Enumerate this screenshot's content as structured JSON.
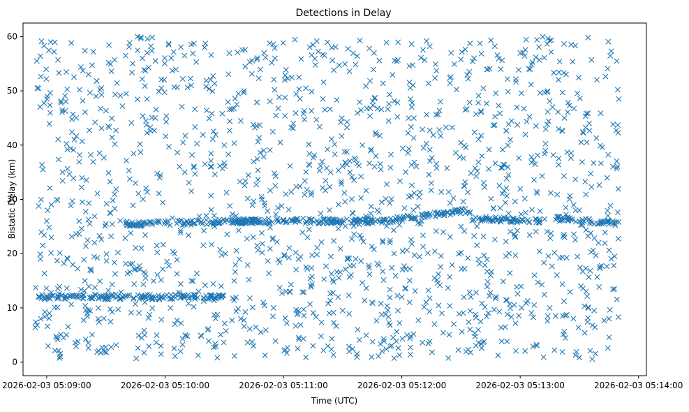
{
  "chart_data": {
    "type": "scatter",
    "title": "Detections in Delay",
    "xlabel": "Time (UTC)",
    "ylabel": "Bistatic Delay (km)",
    "xlim": [
      "2026-02-03 05:08:48",
      "2026-02-03 05:14:04"
    ],
    "ylim": [
      -2.5,
      62.5
    ],
    "x_ticks": [
      "2026-02-03 05:09:00",
      "2026-02-03 05:10:00",
      "2026-02-03 05:11:00",
      "2026-02-03 05:12:00",
      "2026-02-03 05:13:00",
      "2026-02-03 05:14:00"
    ],
    "y_ticks": [
      0,
      10,
      20,
      30,
      40,
      50,
      60
    ],
    "marker": "x",
    "color": "#1f77b4",
    "grid": false,
    "legend": "none",
    "series": [
      {
        "x_range": [
          "2026-02-03 05:08:54",
          "2026-02-03 05:13:50"
        ],
        "y_range": [
          0.5,
          60
        ],
        "points": [
          [
            "2026-02-03 05:08:55",
            55.5
          ],
          [
            "2026-02-03 05:08:56",
            12.0
          ],
          [
            "2026-02-03 05:08:57",
            8.0
          ],
          [
            "2026-02-03 05:08:58",
            21.5
          ],
          [
            "2026-02-03 05:09:00",
            26.0
          ],
          [
            "2026-02-03 05:09:02",
            59.0
          ],
          [
            "2026-02-03 05:09:05",
            30.0
          ],
          [
            "2026-02-03 05:09:08",
            35.0
          ],
          [
            "2026-02-03 05:09:10",
            5.0
          ],
          [
            "2026-02-03 05:09:14",
            41.0
          ],
          [
            "2026-02-03 05:09:18",
            29.5
          ],
          [
            "2026-02-03 05:09:22",
            17.0
          ],
          [
            "2026-02-03 05:09:25",
            49.0
          ],
          [
            "2026-02-03 05:09:30",
            25.5
          ],
          [
            "2026-02-03 05:09:35",
            12.5
          ],
          [
            "2026-02-03 05:09:40",
            56.5
          ],
          [
            "2026-02-03 05:09:45",
            33.0
          ],
          [
            "2026-02-03 05:09:48",
            21.0
          ],
          [
            "2026-02-03 05:09:50",
            12.0
          ],
          [
            "2026-02-03 05:09:55",
            45.0
          ],
          [
            "2026-02-03 05:10:00",
            26.0
          ],
          [
            "2026-02-03 05:10:05",
            7.0
          ],
          [
            "2026-02-03 05:10:10",
            35.0
          ],
          [
            "2026-02-03 05:10:15",
            12.0
          ],
          [
            "2026-02-03 05:10:20",
            58.0
          ],
          [
            "2026-02-03 05:10:25",
            25.0
          ],
          [
            "2026-02-03 05:10:30",
            40.0
          ],
          [
            "2026-02-03 05:10:35",
            15.0
          ],
          [
            "2026-02-03 05:10:40",
            50.0
          ],
          [
            "2026-02-03 05:10:45",
            26.0
          ],
          [
            "2026-02-03 05:10:50",
            39.0
          ],
          [
            "2026-02-03 05:10:55",
            10.0
          ],
          [
            "2026-02-03 05:11:00",
            26.0
          ],
          [
            "2026-02-03 05:11:05",
            44.0
          ],
          [
            "2026-02-03 05:11:10",
            26.5
          ],
          [
            "2026-02-03 05:11:15",
            3.0
          ],
          [
            "2026-02-03 05:11:20",
            48.5
          ],
          [
            "2026-02-03 05:11:25",
            26.0
          ],
          [
            "2026-02-03 05:11:30",
            9.5
          ],
          [
            "2026-02-03 05:11:35",
            27.5
          ],
          [
            "2026-02-03 05:11:40",
            40.0
          ],
          [
            "2026-02-03 05:11:45",
            26.0
          ],
          [
            "2026-02-03 05:11:50",
            2.0
          ],
          [
            "2026-02-03 05:11:55",
            26.0
          ],
          [
            "2026-02-03 05:12:00",
            12.0
          ],
          [
            "2026-02-03 05:12:05",
            47.0
          ],
          [
            "2026-02-03 05:12:10",
            26.0
          ],
          [
            "2026-02-03 05:12:15",
            33.0
          ],
          [
            "2026-02-03 05:12:20",
            27.5
          ],
          [
            "2026-02-03 05:12:25",
            57.0
          ],
          [
            "2026-02-03 05:12:30",
            25.0
          ],
          [
            "2026-02-03 05:12:35",
            12.0
          ],
          [
            "2026-02-03 05:12:40",
            26.0
          ],
          [
            "2026-02-03 05:12:45",
            16.0
          ],
          [
            "2026-02-03 05:12:50",
            26.0
          ],
          [
            "2026-02-03 05:12:55",
            41.0
          ],
          [
            "2026-02-03 05:13:00",
            26.0
          ],
          [
            "2026-02-03 05:13:05",
            54.0
          ],
          [
            "2026-02-03 05:13:10",
            26.0
          ],
          [
            "2026-02-03 05:13:15",
            10.0
          ],
          [
            "2026-02-03 05:13:20",
            26.0
          ],
          [
            "2026-02-03 05:13:25",
            30.0
          ],
          [
            "2026-02-03 05:13:30",
            26.0
          ],
          [
            "2026-02-03 05:13:35",
            44.0
          ],
          [
            "2026-02-03 05:13:40",
            25.5
          ],
          [
            "2026-02-03 05:13:45",
            8.0
          ],
          [
            "2026-02-03 05:13:48",
            25.5
          ],
          [
            "2026-02-03 05:13:50",
            48.5
          ]
        ],
        "tracks": [
          {
            "x": [
              "2026-02-03 05:08:56",
              "2026-02-03 05:10:30"
            ],
            "y": [
              12.0,
              12.0
            ]
          },
          {
            "x": [
              "2026-02-03 05:09:40",
              "2026-02-03 05:10:50"
            ],
            "y": [
              25.5,
              26.0
            ]
          },
          {
            "x": [
              "2026-02-03 05:10:35",
              "2026-02-03 05:11:50"
            ],
            "y": [
              26.0,
              26.0
            ]
          },
          {
            "x": [
              "2026-02-03 05:11:50",
              "2026-02-03 05:12:35"
            ],
            "y": [
              26.0,
              28.0
            ]
          },
          {
            "x": [
              "2026-02-03 05:12:35",
              "2026-02-03 05:13:10"
            ],
            "y": [
              26.5,
              26.0
            ]
          },
          {
            "x": [
              "2026-02-03 05:13:18",
              "2026-02-03 05:13:50"
            ],
            "y": [
              26.5,
              25.5
            ]
          }
        ]
      }
    ]
  }
}
